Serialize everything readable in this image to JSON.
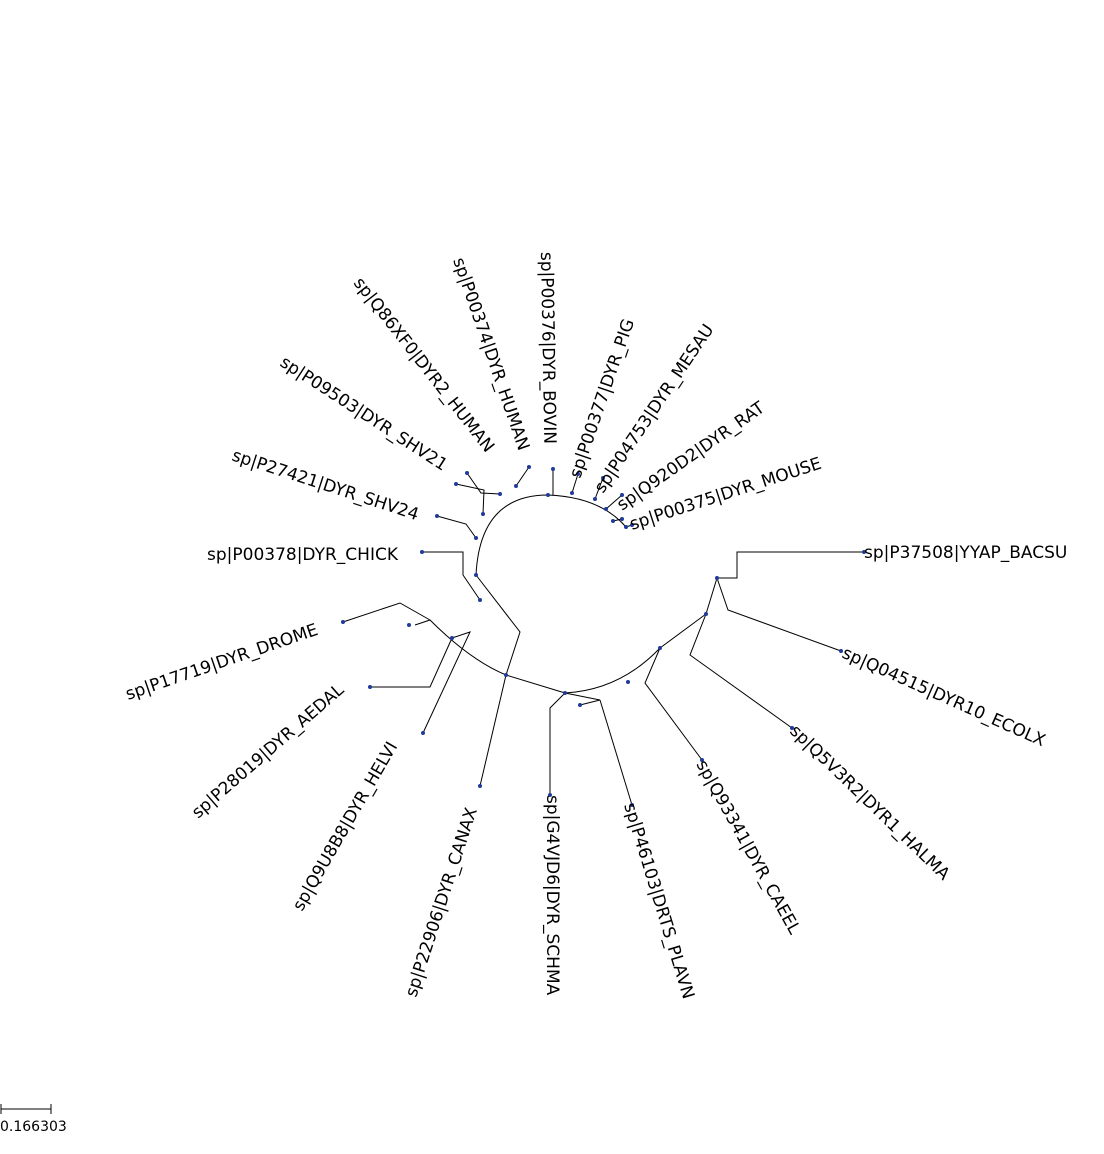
{
  "tree": {
    "leaves": [
      {
        "id": "bacsu",
        "label": "sp|P37508|YYAP_BACSU"
      },
      {
        "id": "ecolx",
        "label": "sp|Q04515|DYR10_ECOLX"
      },
      {
        "id": "halma",
        "label": "sp|Q5V3R2|DYR1_HALMA"
      },
      {
        "id": "caeel",
        "label": "sp|Q93341|DYR_CAEEL"
      },
      {
        "id": "plavn",
        "label": "sp|P46103|DRTS_PLAVN"
      },
      {
        "id": "schma",
        "label": "sp|G4VJD6|DYR_SCHMA"
      },
      {
        "id": "canax",
        "label": "sp|P22906|DYR_CANAX"
      },
      {
        "id": "helvi",
        "label": "sp|Q9U8B8|DYR_HELVI"
      },
      {
        "id": "aedal",
        "label": "sp|P28019|DYR_AEDAL"
      },
      {
        "id": "drome",
        "label": "sp|P17719|DYR_DROME"
      },
      {
        "id": "chick",
        "label": "sp|P00378|DYR_CHICK"
      },
      {
        "id": "shv24",
        "label": "sp|P27421|DYR_SHV24"
      },
      {
        "id": "shv21",
        "label": "sp|P09503|DYR_SHV21"
      },
      {
        "id": "human2",
        "label": "sp|Q86XF0|DYR2_HUMAN"
      },
      {
        "id": "human",
        "label": "sp|P00374|DYR_HUMAN"
      },
      {
        "id": "bovin",
        "label": "sp|P00376|DYR_BOVIN"
      },
      {
        "id": "pig",
        "label": "sp|P00377|DYR_PIG"
      },
      {
        "id": "mesau",
        "label": "sp|P04753|DYR_MESAU"
      },
      {
        "id": "rat",
        "label": "sp|Q920D2|DYR_RAT"
      },
      {
        "id": "mouse",
        "label": "sp|P00375|DYR_MOUSE"
      }
    ],
    "node_color": "#1f3a9a",
    "branch_color": "#000000",
    "scale_bar": {
      "value": 0.166303,
      "label": "0.166303"
    }
  }
}
